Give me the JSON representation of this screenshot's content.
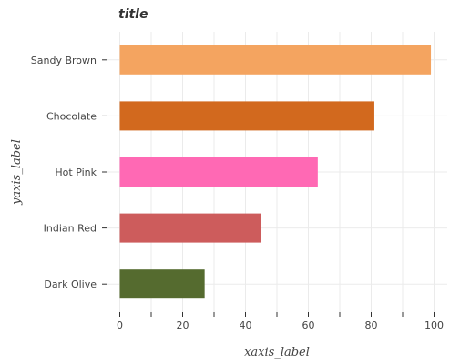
{
  "chart_data": {
    "type": "bar",
    "orientation": "horizontal",
    "title": "title",
    "xlabel": "xaxis_label",
    "ylabel": "yaxis_label",
    "categories": [
      "Sandy Brown",
      "Chocolate",
      "Hot Pink",
      "Indian Red",
      "Dark Olive"
    ],
    "values": [
      99,
      81,
      63,
      45,
      27
    ],
    "colors": [
      "#f4a460",
      "#d2691e",
      "#ff69b4",
      "#cd5c5c",
      "#556b2f"
    ],
    "xlim": [
      0,
      100
    ],
    "xticks": [
      0,
      20,
      40,
      60,
      80,
      100
    ],
    "xtick_labels": [
      "0",
      "20",
      "40",
      "60",
      "80",
      "100"
    ],
    "grid": true
  }
}
